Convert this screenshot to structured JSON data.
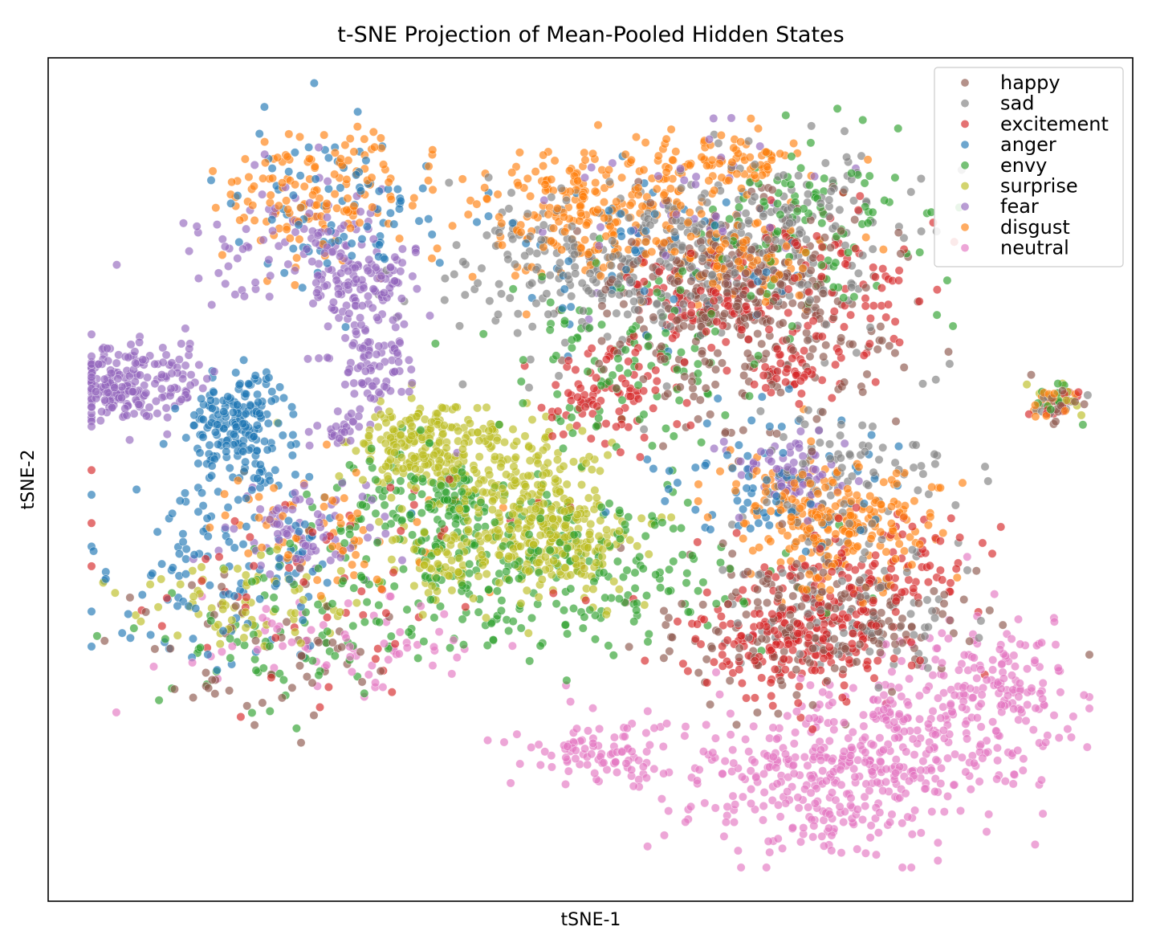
{
  "chart_data": {
    "type": "scatter",
    "title": "t-SNE Projection of Mean-Pooled Hidden States",
    "xlabel": "tSNE-1",
    "ylabel": "tSNE-2",
    "xticks": "none",
    "yticks": "none",
    "xlim": [
      0,
      100
    ],
    "ylim": [
      0,
      100
    ],
    "grid": false,
    "legend_position": "top-right",
    "point_opacity": 0.65,
    "series": [
      {
        "name": "happy",
        "color": "#8c564b",
        "clusters": [
          {
            "center": [
              64,
              68
            ],
            "spread": [
              6.5,
              5.5
            ],
            "count": 260
          },
          {
            "center": [
              70,
              33
            ],
            "spread": [
              7,
              4.5
            ],
            "count": 200
          },
          {
            "center": [
              62,
              75
            ],
            "spread": [
              5,
              4
            ],
            "count": 120
          },
          {
            "center": [
              21,
              30
            ],
            "spread": [
              6,
              5
            ],
            "count": 60
          },
          {
            "center": [
              92.8,
              59
            ],
            "spread": [
              1.3,
              1.2
            ],
            "count": 12
          }
        ]
      },
      {
        "name": "sad",
        "color": "#7f7f7f",
        "clusters": [
          {
            "center": [
              50,
              75
            ],
            "spread": [
              7,
              4.5
            ],
            "count": 220
          },
          {
            "center": [
              67,
              79
            ],
            "spread": [
              6,
              5
            ],
            "count": 180
          },
          {
            "center": [
              73,
              50
            ],
            "spread": [
              5,
              6
            ],
            "count": 120
          },
          {
            "center": [
              74,
              34
            ],
            "spread": [
              5,
              4
            ],
            "count": 90
          },
          {
            "center": [
              92.8,
              59
            ],
            "spread": [
              1.3,
              1.2
            ],
            "count": 10
          }
        ]
      },
      {
        "name": "excitement",
        "color": "#d62728",
        "clusters": [
          {
            "center": [
              69,
              32
            ],
            "spread": [
              5,
              4
            ],
            "count": 260
          },
          {
            "center": [
              60,
              71
            ],
            "spread": [
              3.5,
              3
            ],
            "count": 80
          },
          {
            "center": [
              52,
              60
            ],
            "spread": [
              3,
              3.5
            ],
            "count": 90
          },
          {
            "center": [
              72,
              71
            ],
            "spread": [
              5,
              5
            ],
            "count": 110
          },
          {
            "center": [
              68.5,
              63
            ],
            "spread": [
              1.5,
              1.2
            ],
            "count": 30
          },
          {
            "center": [
              79,
              40
            ],
            "spread": [
              4,
              3
            ],
            "count": 70
          },
          {
            "center": [
              93,
              58.5
            ],
            "spread": [
              1.2,
              1.1
            ],
            "count": 12
          },
          {
            "center": [
              25,
              38
            ],
            "spread": [
              12,
              8
            ],
            "count": 60
          }
        ]
      },
      {
        "name": "anger",
        "color": "#1f77b4",
        "clusters": [
          {
            "center": [
              17.5,
              56
            ],
            "spread": [
              2.5,
              3.5
            ],
            "count": 200
          },
          {
            "center": [
              16.5,
              40
            ],
            "spread": [
              6,
              5
            ],
            "count": 120
          },
          {
            "center": [
              27,
              82
            ],
            "spread": [
              5,
              5
            ],
            "count": 90
          },
          {
            "center": [
              67,
              49
            ],
            "spread": [
              5,
              4
            ],
            "count": 80
          },
          {
            "center": [
              55,
              77
            ],
            "spread": [
              6,
              6
            ],
            "count": 60
          }
        ]
      },
      {
        "name": "envy",
        "color": "#2ca02c",
        "clusters": [
          {
            "center": [
              45,
              40
            ],
            "spread": [
              10,
              5
            ],
            "count": 320
          },
          {
            "center": [
              53,
              64
            ],
            "spread": [
              6,
              6
            ],
            "count": 120
          },
          {
            "center": [
              70,
              80
            ],
            "spread": [
              5,
              6
            ],
            "count": 110
          },
          {
            "center": [
              37.5,
              48
            ],
            "spread": [
              1.5,
              1.5
            ],
            "count": 40
          },
          {
            "center": [
              32,
              47
            ],
            "spread": [
              4,
              3
            ],
            "count": 60
          },
          {
            "center": [
              21,
              30
            ],
            "spread": [
              6,
              4
            ],
            "count": 60
          },
          {
            "center": [
              92.8,
              59
            ],
            "spread": [
              1.3,
              1.2
            ],
            "count": 10
          }
        ]
      },
      {
        "name": "surprise",
        "color": "#bcbd22",
        "clusters": [
          {
            "center": [
              35,
              54
            ],
            "spread": [
              3.5,
              2.5
            ],
            "count": 230
          },
          {
            "center": [
              44,
              48
            ],
            "spread": [
              3.5,
              4
            ],
            "count": 200
          },
          {
            "center": [
              47.5,
              42
            ],
            "spread": [
              3.5,
              3
            ],
            "count": 180
          },
          {
            "center": [
              36.5,
              41
            ],
            "spread": [
              2.5,
              2.5
            ],
            "count": 80
          },
          {
            "center": [
              17.5,
              35
            ],
            "spread": [
              5,
              2.5
            ],
            "count": 70
          },
          {
            "center": [
              93,
              59.5
            ],
            "spread": [
              1.2,
              1.1
            ],
            "count": 10
          }
        ]
      },
      {
        "name": "fear",
        "color": "#9467bd",
        "clusters": [
          {
            "center": [
              7,
              61.5
            ],
            "spread": [
              3.5,
              2.3
            ],
            "count": 230
          },
          {
            "center": [
              29,
              73
            ],
            "spread": [
              2.5,
              2.5
            ],
            "count": 110
          },
          {
            "center": [
              30,
              63
            ],
            "spread": [
              2,
              2.5
            ],
            "count": 80
          },
          {
            "center": [
              23,
              78
            ],
            "spread": [
              5,
              4
            ],
            "count": 100
          },
          {
            "center": [
              24,
              44
            ],
            "spread": [
              4,
              3
            ],
            "count": 80
          },
          {
            "center": [
              27,
              56
            ],
            "spread": [
              1.5,
              1.2
            ],
            "count": 25
          },
          {
            "center": [
              68,
              51
            ],
            "spread": [
              2.5,
              2.5
            ],
            "count": 70
          },
          {
            "center": [
              59,
              80
            ],
            "spread": [
              6,
              6
            ],
            "count": 50
          }
        ]
      },
      {
        "name": "disgust",
        "color": "#ff7f0e",
        "clusters": [
          {
            "center": [
              51,
              82
            ],
            "spread": [
              6,
              4
            ],
            "count": 250
          },
          {
            "center": [
              72,
              45
            ],
            "spread": [
              4.5,
              4
            ],
            "count": 250
          },
          {
            "center": [
              26,
              84
            ],
            "spread": [
              5,
              4
            ],
            "count": 150
          },
          {
            "center": [
              63,
              88
            ],
            "spread": [
              4,
              2
            ],
            "count": 80
          },
          {
            "center": [
              63,
              76
            ],
            "spread": [
              4,
              3
            ],
            "count": 80
          },
          {
            "center": [
              24,
              44
            ],
            "spread": [
              6,
              4
            ],
            "count": 70
          },
          {
            "center": [
              93,
              59
            ],
            "spread": [
              1.3,
              1.2
            ],
            "count": 15
          }
        ]
      },
      {
        "name": "neutral",
        "color": "#e377c2",
        "clusters": [
          {
            "center": [
              72,
              15
            ],
            "spread": [
              6.5,
              5
            ],
            "count": 380
          },
          {
            "center": [
              84,
              22
            ],
            "spread": [
              5,
              5
            ],
            "count": 230
          },
          {
            "center": [
              50.5,
              18
            ],
            "spread": [
              3.5,
              1.8
            ],
            "count": 90
          },
          {
            "center": [
              28,
              30
            ],
            "spread": [
              7,
              3
            ],
            "count": 70
          },
          {
            "center": [
              90,
              28
            ],
            "spread": [
              2,
              3
            ],
            "count": 30
          }
        ]
      }
    ]
  }
}
